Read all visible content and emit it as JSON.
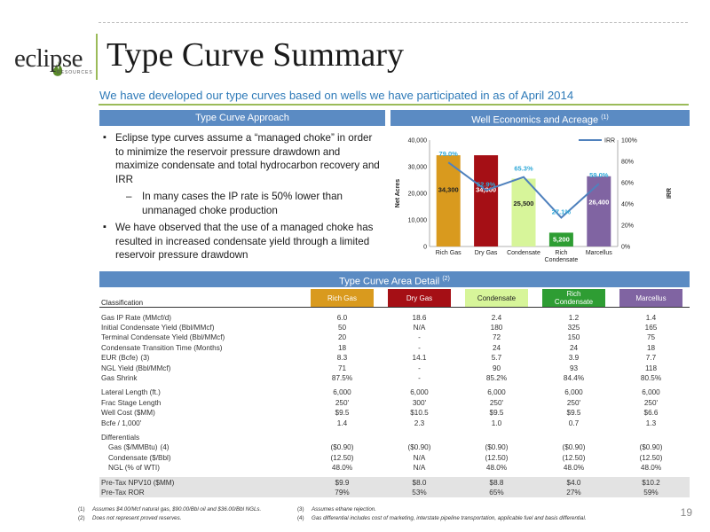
{
  "logo": {
    "name": "eclipse",
    "sub": "RESOURCES"
  },
  "title": "Type Curve Summary",
  "subtitle": "We have developed our type curves based on wells we have participated in as of April 2014",
  "sections": {
    "approach": "Type Curve Approach",
    "economics": "Well Economics and Acreage",
    "economics_note": "(1)",
    "detail": "Type Curve Area Detail",
    "detail_note": "(2)"
  },
  "bullets": {
    "b1": "Eclipse type curves assume a “managed choke” in order to minimize the reservoir pressure drawdown and maximize condensate and total hydrocarbon recovery and IRR",
    "b1_sub": "In many cases the IP rate is 50% lower than unmanaged choke production",
    "b2": "We have observed that the use of a managed choke has resulted in increased condensate yield through a limited reservoir pressure drawdown"
  },
  "chart_data": {
    "type": "bar",
    "categories": [
      "Rich Gas",
      "Dry Gas",
      "Condensate",
      "Rich Condensate",
      "Marcellus"
    ],
    "category_lines": [
      [
        "Rich Gas"
      ],
      [
        "Dry Gas"
      ],
      [
        "Condensate"
      ],
      [
        "Rich",
        "Condensate"
      ],
      [
        "Marcellus"
      ]
    ],
    "series": [
      {
        "name": "",
        "values": [
          34300,
          34300,
          25500,
          5200,
          26400
        ],
        "labels": [
          "34,300",
          "34,300",
          "25,500",
          "5,200",
          "26,400"
        ],
        "colors": [
          "#d99a1e",
          "#a50f15",
          "#d7f59a",
          "#2e9d33",
          "#8064a2"
        ]
      },
      {
        "name": "IRR",
        "values": [
          79.0,
          52.9,
          65.3,
          27.1,
          59.0
        ],
        "labels": [
          "79.0%",
          "52.9%",
          "65.3%",
          "27.1%",
          "59.0%"
        ],
        "color": "#4f81bd",
        "axis": "right"
      }
    ],
    "ylabel": "Net Acres",
    "y2label": "IRR",
    "ylim": [
      0,
      40000
    ],
    "y2lim": [
      0,
      100
    ],
    "yticks": [
      "0",
      "10,000",
      "20,000",
      "30,000",
      "40,000"
    ],
    "y2ticks": [
      "0%",
      "20%",
      "40%",
      "60%",
      "80%",
      "100%"
    ],
    "legend": "top-right",
    "grid": false
  },
  "table": {
    "classification_label": "Classification",
    "columns": [
      {
        "lines": [
          "Rich Gas"
        ],
        "bg": "#d99a1e",
        "fg": "#ffffff"
      },
      {
        "lines": [
          "Dry Gas"
        ],
        "bg": "#a50f15",
        "fg": "#ffffff"
      },
      {
        "lines": [
          "Condensate"
        ],
        "bg": "#d7f59a",
        "fg": "#222222"
      },
      {
        "lines": [
          "Rich",
          "Condensate"
        ],
        "bg": "#2e9d33",
        "fg": "#ffffff"
      },
      {
        "lines": [
          "Marcellus"
        ],
        "bg": "#8064a2",
        "fg": "#ffffff"
      }
    ],
    "groups": [
      {
        "rows": [
          {
            "label": "Gas IP Rate (MMcf/d)",
            "values": [
              "6.0",
              "18.6",
              "2.4",
              "1.2",
              "1.4"
            ]
          },
          {
            "label": "Initial Condensate Yield (Bbl/MMcf)",
            "values": [
              "50",
              "N/A",
              "180",
              "325",
              "165"
            ]
          },
          {
            "label": "Terminal Condensate Yield (Bbl/MMcf)",
            "values": [
              "20",
              "-",
              "72",
              "150",
              "75"
            ]
          },
          {
            "label": "Condensate Transition Time (Months)",
            "values": [
              "18",
              "-",
              "24",
              "24",
              "18"
            ]
          },
          {
            "label": "EUR (Bcfe)",
            "note": "(3)",
            "values": [
              "8.3",
              "14.1",
              "5.7",
              "3.9",
              "7.7"
            ]
          },
          {
            "label": "NGL Yield (Bbl/MMcf)",
            "values": [
              "71",
              "-",
              "90",
              "93",
              "118"
            ]
          },
          {
            "label": "Gas Shrink",
            "values": [
              "87.5%",
              "-",
              "85.2%",
              "84.4%",
              "80.5%"
            ]
          }
        ]
      },
      {
        "rows": [
          {
            "label": "Lateral Length (ft.)",
            "values": [
              "6,000",
              "6,000",
              "6,000",
              "6,000",
              "6,000"
            ]
          },
          {
            "label": "Frac Stage Length",
            "values": [
              "250'",
              "300'",
              "250'",
              "250'",
              "250'"
            ]
          },
          {
            "label": "Well Cost ($MM)",
            "values": [
              "$9.5",
              "$10.5",
              "$9.5",
              "$9.5",
              "$6.6"
            ]
          },
          {
            "label": "Bcfe / 1,000'",
            "values": [
              "1.4",
              "2.3",
              "1.0",
              "0.7",
              "1.3"
            ]
          }
        ]
      },
      {
        "rows": [
          {
            "label": "Differentials",
            "values": [
              "",
              "",
              "",
              "",
              ""
            ]
          },
          {
            "label": "Gas ($/MMBtu)",
            "note": "(4)",
            "indent": true,
            "values": [
              "($0.90)",
              "($0.90)",
              "($0.90)",
              "($0.90)",
              "($0.90)"
            ]
          },
          {
            "label": "Condensate ($/Bbl)",
            "indent": true,
            "values": [
              "(12.50)",
              "N/A",
              "(12.50)",
              "(12.50)",
              "(12.50)"
            ]
          },
          {
            "label": "NGL (% of WTI)",
            "indent": true,
            "values": [
              "48.0%",
              "N/A",
              "48.0%",
              "48.0%",
              "48.0%"
            ]
          }
        ]
      },
      {
        "shaded": true,
        "rows": [
          {
            "label": "Pre-Tax NPV10 ($MM)",
            "values": [
              "$9.9",
              "$8.0",
              "$8.8",
              "$4.0",
              "$10.2"
            ]
          },
          {
            "label": "Pre-Tax ROR",
            "values": [
              "79%",
              "53%",
              "65%",
              "27%",
              "59%"
            ]
          }
        ]
      }
    ]
  },
  "footnotes": [
    {
      "num": "(1)",
      "text": "Assumes $4.00/Mcf natural gas, $90.00/Bbl oil and $36.00/Bbl NGLs."
    },
    {
      "num": "(2)",
      "text": "Does not represent proved reserves."
    },
    {
      "num": "(3)",
      "text": "Assumes ethane rejection."
    },
    {
      "num": "(4)",
      "text": "Gas differential includes cost of marketing, interstate pipeline transportation, applicable fuel and basis differential."
    }
  ],
  "page_number": "19"
}
